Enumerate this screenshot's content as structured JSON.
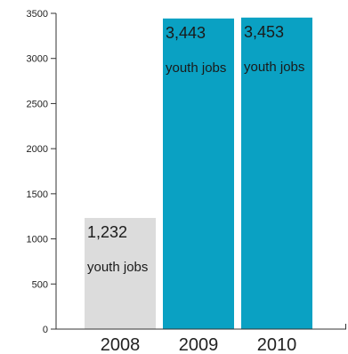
{
  "chart_data": {
    "type": "bar",
    "categories": [
      "2008",
      "2009",
      "2010"
    ],
    "values": [
      1232,
      3443,
      3453
    ],
    "data_labels": [
      "1,232",
      "3,443",
      "3,453"
    ],
    "data_label_unit": "youth jobs",
    "ylim": [
      0,
      3500
    ],
    "yticks": [
      0,
      500,
      1000,
      1500,
      2000,
      2500,
      3000,
      3500
    ],
    "colors": [
      "#dcdcdc",
      "#0aa1c3",
      "#0aa1c3"
    ],
    "grid": false,
    "legend": "none"
  }
}
